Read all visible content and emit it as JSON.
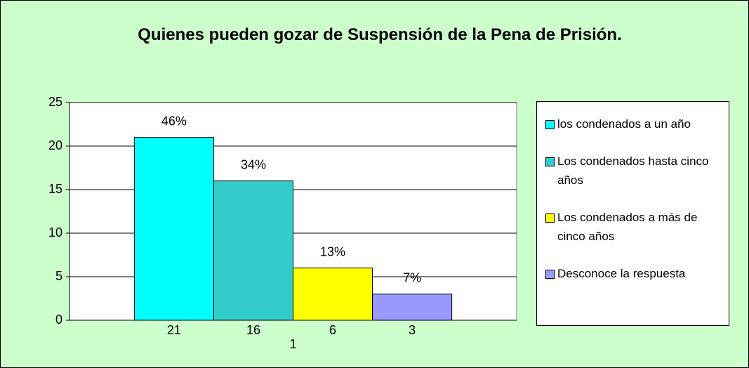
{
  "chart_data": {
    "type": "bar",
    "title": "Quienes pueden gozar de Suspensión de la Pena de Prisión.",
    "categories": [
      "1"
    ],
    "series": [
      {
        "name": "los condenados a un año",
        "color": "#00ffff",
        "values": [
          21
        ],
        "data_labels": [
          "46%"
        ]
      },
      {
        "name": "Los condenados hasta cinco años",
        "color": "#33cccc",
        "values": [
          16
        ],
        "data_labels": [
          "34%"
        ]
      },
      {
        "name": "Los condenados a más de cinco años",
        "color": "#ffff00",
        "values": [
          6
        ],
        "data_labels": [
          "13%"
        ]
      },
      {
        "name": "Desconoce la respuesta",
        "color": "#9999ff",
        "values": [
          3
        ],
        "data_labels": [
          "7%"
        ]
      }
    ],
    "ylim": [
      0,
      25
    ],
    "yticks": [
      0,
      5,
      10,
      15,
      20,
      25
    ],
    "grid": true,
    "legend": "right"
  }
}
